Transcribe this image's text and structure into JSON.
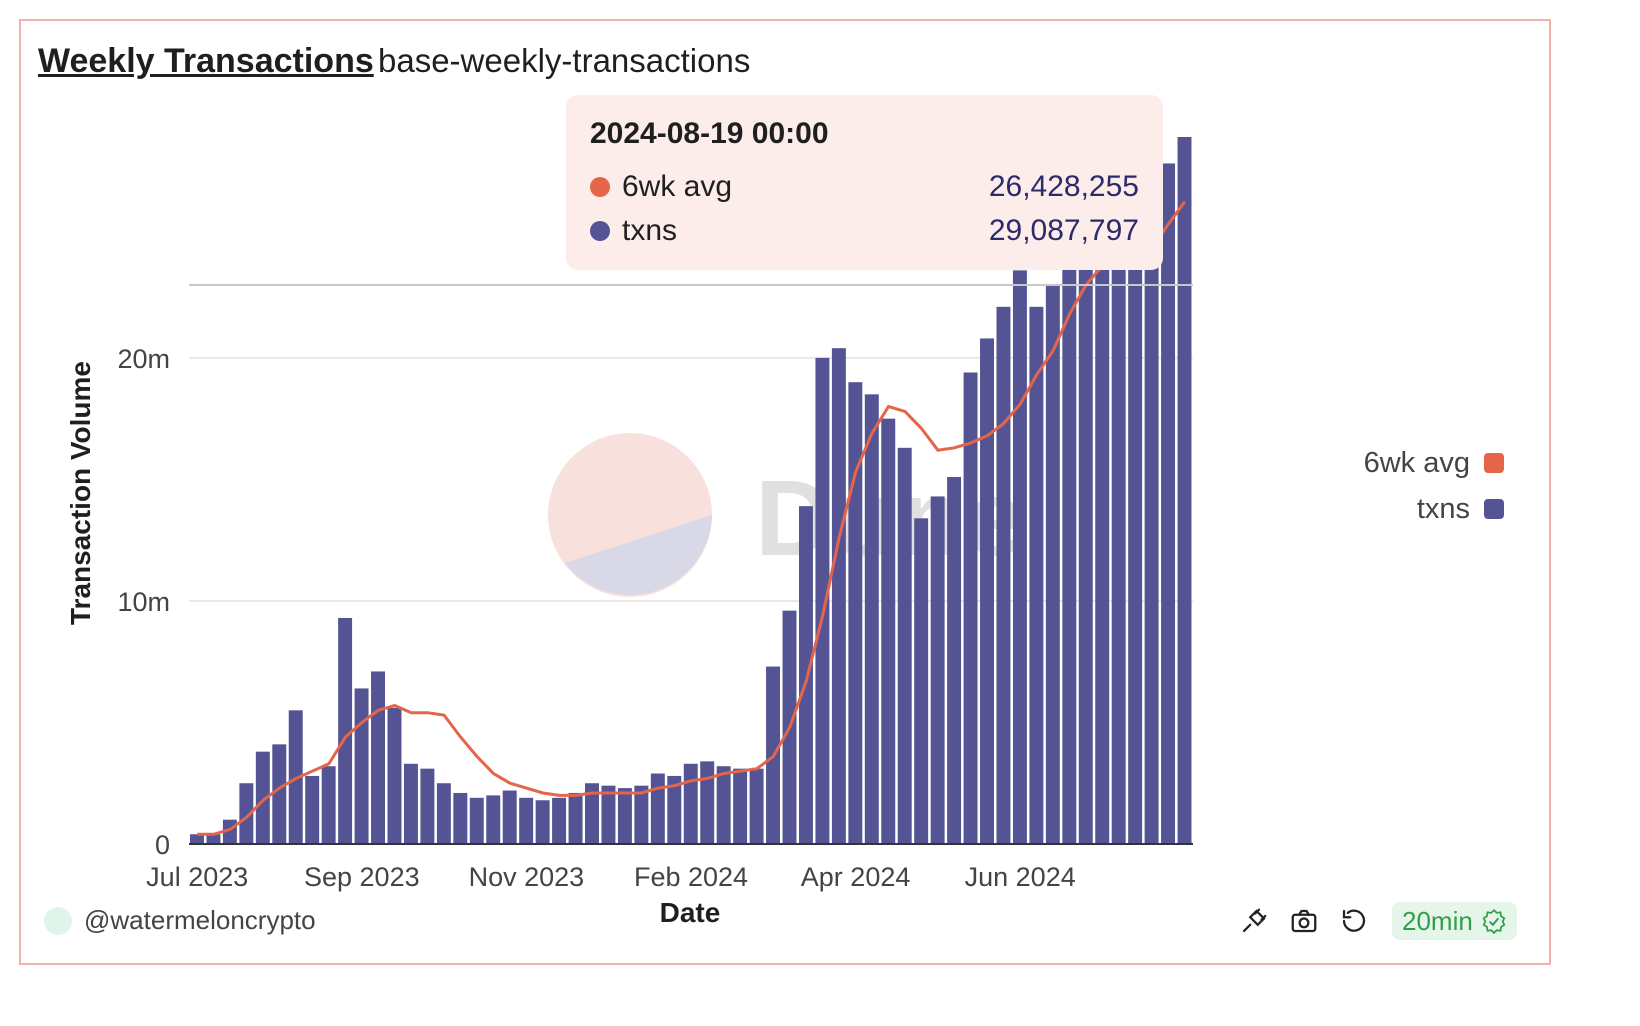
{
  "header": {
    "title": "Weekly Transactions",
    "subtitle": "base-weekly-transactions"
  },
  "tooltip": {
    "date": "2024-08-19 00:00",
    "rows": [
      {
        "label": "6wk avg",
        "value": "26,428,255",
        "color": "#e4654a"
      },
      {
        "label": "txns",
        "value": "29,087,797",
        "color": "#545494"
      }
    ]
  },
  "legend": [
    {
      "label": "6wk avg",
      "color": "#e4654a"
    },
    {
      "label": "txns",
      "color": "#545494"
    }
  ],
  "watermark": {
    "text": "Dune"
  },
  "footer": {
    "author": "@watermeloncrypto",
    "refresh": "20min"
  },
  "colors": {
    "bar": "#545494",
    "line": "#e4654a",
    "grid": "#e8e8e8"
  },
  "chart_data": {
    "type": "bar",
    "title": "Weekly Transactions",
    "xlabel": "Date",
    "ylabel": "Transaction Volume",
    "ylim": [
      0,
      29087797
    ],
    "y_ticks": [
      {
        "value": 0,
        "label": "0"
      },
      {
        "value": 10000000,
        "label": "10m"
      },
      {
        "value": 20000000,
        "label": "20m"
      }
    ],
    "x_ticks": [
      {
        "index": 0.5,
        "label": "Jul 2023"
      },
      {
        "index": 10.5,
        "label": "Sep 2023"
      },
      {
        "index": 20.5,
        "label": "Nov 2023"
      },
      {
        "index": 30.5,
        "label": "Feb 2024"
      },
      {
        "index": 40.5,
        "label": "Apr 2024"
      },
      {
        "index": 50.5,
        "label": "Jun 2024"
      }
    ],
    "hover_index": 58,
    "hover_value": 23000000,
    "series": [
      {
        "name": "txns",
        "type": "bar",
        "values": [
          400000,
          400000,
          1000000,
          2500000,
          3800000,
          4100000,
          5500000,
          2800000,
          3200000,
          9300000,
          6400000,
          7100000,
          5600000,
          3300000,
          3100000,
          2500000,
          2100000,
          1900000,
          2000000,
          2200000,
          1900000,
          1800000,
          1900000,
          2100000,
          2500000,
          2400000,
          2300000,
          2400000,
          2900000,
          2800000,
          3300000,
          3400000,
          3200000,
          3100000,
          3100000,
          7300000,
          9600000,
          13900000,
          20000000,
          20400000,
          19000000,
          18500000,
          17500000,
          16300000,
          13400000,
          14300000,
          15100000,
          19400000,
          20800000,
          22100000,
          23600000,
          22100000,
          23000000,
          24000000,
          24600000,
          24600000,
          25000000,
          25400000,
          26500000,
          28000000,
          29087797
        ]
      },
      {
        "name": "6wk avg",
        "type": "line",
        "values": [
          400000,
          400000,
          600000,
          1100000,
          1800000,
          2300000,
          2700000,
          3000000,
          3300000,
          4400000,
          5000000,
          5500000,
          5700000,
          5400000,
          5400000,
          5300000,
          4400000,
          3600000,
          2900000,
          2500000,
          2300000,
          2100000,
          2000000,
          2000000,
          2100000,
          2100000,
          2100000,
          2100000,
          2300000,
          2400000,
          2600000,
          2700000,
          2900000,
          3000000,
          3100000,
          3600000,
          4800000,
          6700000,
          9400000,
          12600000,
          15300000,
          16900000,
          18000000,
          17800000,
          17100000,
          16200000,
          16300000,
          16500000,
          16800000,
          17300000,
          18100000,
          19300000,
          20300000,
          21800000,
          23000000,
          23800000,
          24000000,
          24200000,
          24500000,
          25500000,
          26428255
        ]
      }
    ]
  }
}
